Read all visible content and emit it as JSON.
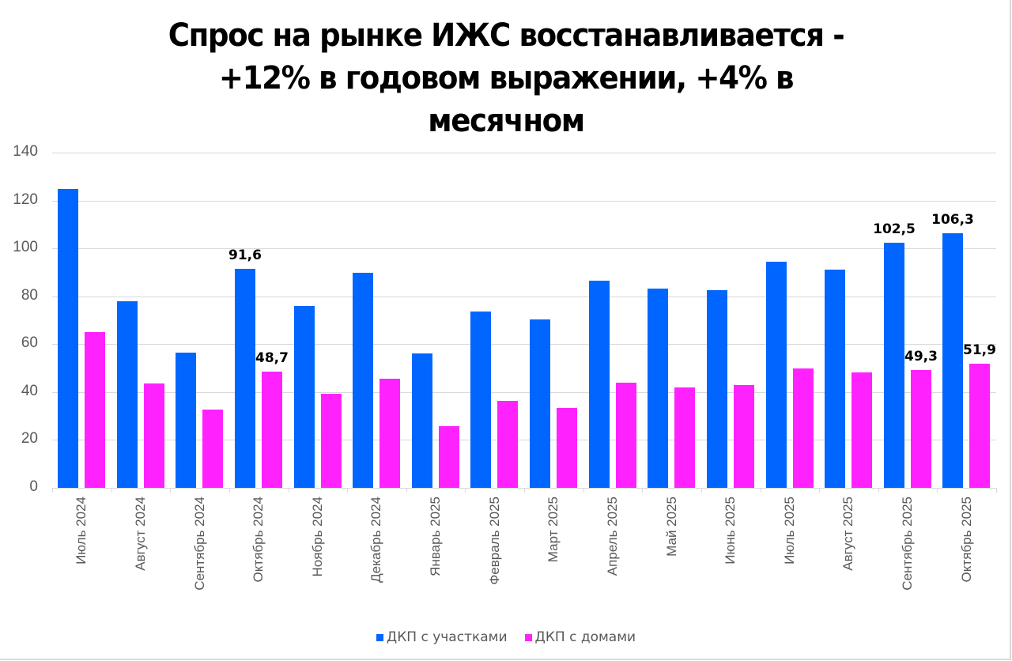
{
  "title_lines": [
    "Спрос на рынке ИЖС восстанавливается -",
    "+12% в годовом выражении, +4% в",
    "месячном"
  ],
  "colors": {
    "series_0": "#0066ff",
    "series_1": "#ff22ff",
    "grid": "#d9d9d9",
    "axis_text": "#595959"
  },
  "legend": [
    {
      "label": "ДКП с участками",
      "color": "#0066ff"
    },
    {
      "label": "ДКП с домами",
      "color": "#ff22ff"
    }
  ],
  "chart_data": {
    "type": "bar",
    "title": "Спрос на рынке ИЖС восстанавливается - +12% в годовом выражении, +4% в месячном",
    "xlabel": "",
    "ylabel": "",
    "ylim": [
      0,
      140
    ],
    "yticks": [
      0,
      20,
      40,
      60,
      80,
      100,
      120,
      140
    ],
    "grid": true,
    "legend_position": "bottom",
    "categories": [
      "Июль 2024",
      "Август 2024",
      "Сентябрь 2024",
      "Октябрь 2024",
      "Ноябрь 2024",
      "Декабрь 2024",
      "Январь 2025",
      "Февраль 2025",
      "Март 2025",
      "Апрель 2025",
      "Май 2025",
      "Июнь 2025",
      "Июль 2025",
      "Август 2025",
      "Сентябрь 2025",
      "Октябрь 2025"
    ],
    "series": [
      {
        "name": "ДКП с участками",
        "color": "#0066ff",
        "values": [
          124.7,
          77.8,
          56.3,
          91.6,
          75.9,
          89.8,
          56.1,
          73.7,
          70.4,
          86.5,
          83.2,
          82.5,
          94.3,
          91.0,
          102.5,
          106.3
        ]
      },
      {
        "name": "ДКП с домами",
        "color": "#ff22ff",
        "values": [
          65.1,
          43.7,
          32.7,
          48.7,
          39.4,
          45.5,
          25.8,
          36.4,
          33.5,
          43.8,
          41.8,
          43.0,
          49.7,
          48.2,
          49.3,
          51.9
        ]
      }
    ],
    "annotations": [
      {
        "series": 0,
        "index": 3,
        "text": "91,6"
      },
      {
        "series": 1,
        "index": 3,
        "text": "48,7"
      },
      {
        "series": 0,
        "index": 14,
        "text": "102,5"
      },
      {
        "series": 1,
        "index": 14,
        "text": "49,3"
      },
      {
        "series": 0,
        "index": 15,
        "text": "106,3"
      },
      {
        "series": 1,
        "index": 15,
        "text": "51,9"
      }
    ]
  }
}
